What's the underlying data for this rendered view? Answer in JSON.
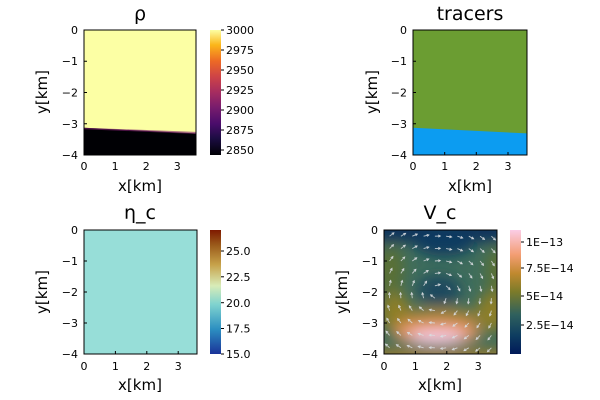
{
  "chart_data": [
    {
      "type": "heatmap",
      "title": "ρ",
      "xlabel": "x[km]",
      "ylabel": "y[km]",
      "xlim": [
        0,
        3.6
      ],
      "ylim": [
        -4,
        0
      ],
      "xticks": [
        "0",
        "1",
        "2",
        "3"
      ],
      "yticks": [
        "0",
        "−1",
        "−2",
        "−3",
        "−4"
      ],
      "colorbar": {
        "range": [
          2845,
          3000
        ],
        "ticks": [
          "3000",
          "2975",
          "2950",
          "2925",
          "2900",
          "2875",
          "2850"
        ],
        "colormap": "inferno"
      },
      "regions": [
        {
          "name": "upper",
          "value": 3000,
          "color": "#fcffa4",
          "boundary_y": [
            [
              0,
              -3.13
            ],
            [
              3.6,
              -3.33
            ]
          ]
        },
        {
          "name": "lower",
          "value": 2850,
          "color": "#000004"
        }
      ]
    },
    {
      "type": "heatmap",
      "title": "tracers",
      "xlabel": "x[km]",
      "ylabel": "y[km]",
      "xlim": [
        0,
        3.6
      ],
      "ylim": [
        -4,
        0
      ],
      "xticks": [
        "0",
        "1",
        "2",
        "3"
      ],
      "yticks": [
        "0",
        "−1",
        "−2",
        "−3",
        "−4"
      ],
      "regions": [
        {
          "name": "upper",
          "color": "#6b9d32",
          "boundary_y": [
            [
              0,
              -3.13
            ],
            [
              3.6,
              -3.33
            ]
          ]
        },
        {
          "name": "lower",
          "color": "#0c9cf1"
        }
      ]
    },
    {
      "type": "heatmap",
      "title": "η_c",
      "xlabel": "x[km]",
      "ylabel": "y[km]",
      "xlim": [
        0,
        3.6
      ],
      "ylim": [
        -4,
        0
      ],
      "xticks": [
        "0",
        "1",
        "2",
        "3"
      ],
      "yticks": [
        "0",
        "−1",
        "−2",
        "−3",
        "−4"
      ],
      "uniform_value": 20,
      "uniform_color": "#97ded8",
      "colorbar": {
        "range": [
          15,
          27
        ],
        "ticks": [
          "25.0",
          "22.5",
          "20.0",
          "17.5",
          "15.0"
        ],
        "colormap": "roma_r"
      }
    },
    {
      "type": "heatmap",
      "title": "V_c",
      "xlabel": "x[km]",
      "ylabel": "y[km]",
      "xlim": [
        0,
        3.6
      ],
      "ylim": [
        -4,
        0
      ],
      "xticks": [
        "0",
        "1",
        "2",
        "3"
      ],
      "yticks": [
        "0",
        "−1",
        "−2",
        "−3",
        "−4"
      ],
      "colorbar": {
        "range": [
          0,
          1.05e-13
        ],
        "ticks": [
          "1E−13",
          "7.5E−14",
          "5E−14",
          "2.5E−14"
        ],
        "tick_values": [
          1e-13,
          7.5e-14,
          5e-14,
          2.5e-14
        ],
        "colormap": "batlow"
      },
      "vortex_center": [
        1.7,
        -2.1
      ],
      "peak": [
        1.6,
        -3.4
      ],
      "overlay": "velocity arrows"
    }
  ]
}
